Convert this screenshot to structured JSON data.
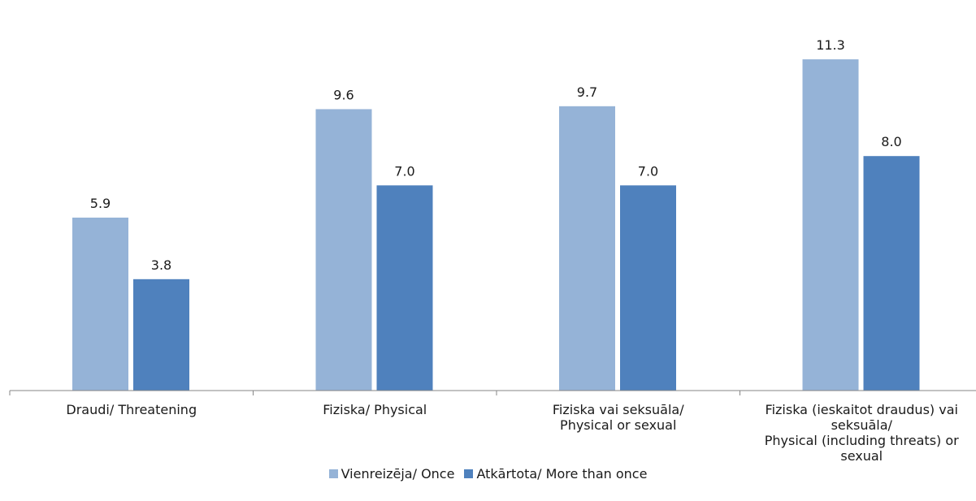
{
  "chart_data": {
    "type": "bar",
    "categories": [
      [
        "Draudi/ Threatening"
      ],
      [
        "Fiziska/ Physical"
      ],
      [
        "Fiziska vai seksuāla/",
        "Physical or sexual"
      ],
      [
        "Fiziska (ieskaitot draudus) vai",
        "seksuāla/",
        "Physical (including threats) or",
        "sexual"
      ]
    ],
    "series": [
      {
        "name": "Vienreizēja/ Once",
        "color": "#95B3D7",
        "values": [
          5.9,
          9.6,
          9.7,
          11.3
        ]
      },
      {
        "name": "Atkārtota/ More than once",
        "color": "#4F81BD",
        "values": [
          3.8,
          7.0,
          7.0,
          8.0
        ]
      }
    ],
    "ylim": [
      0,
      12
    ],
    "grid": false,
    "legend_position": "bottom",
    "data_labels": true
  }
}
